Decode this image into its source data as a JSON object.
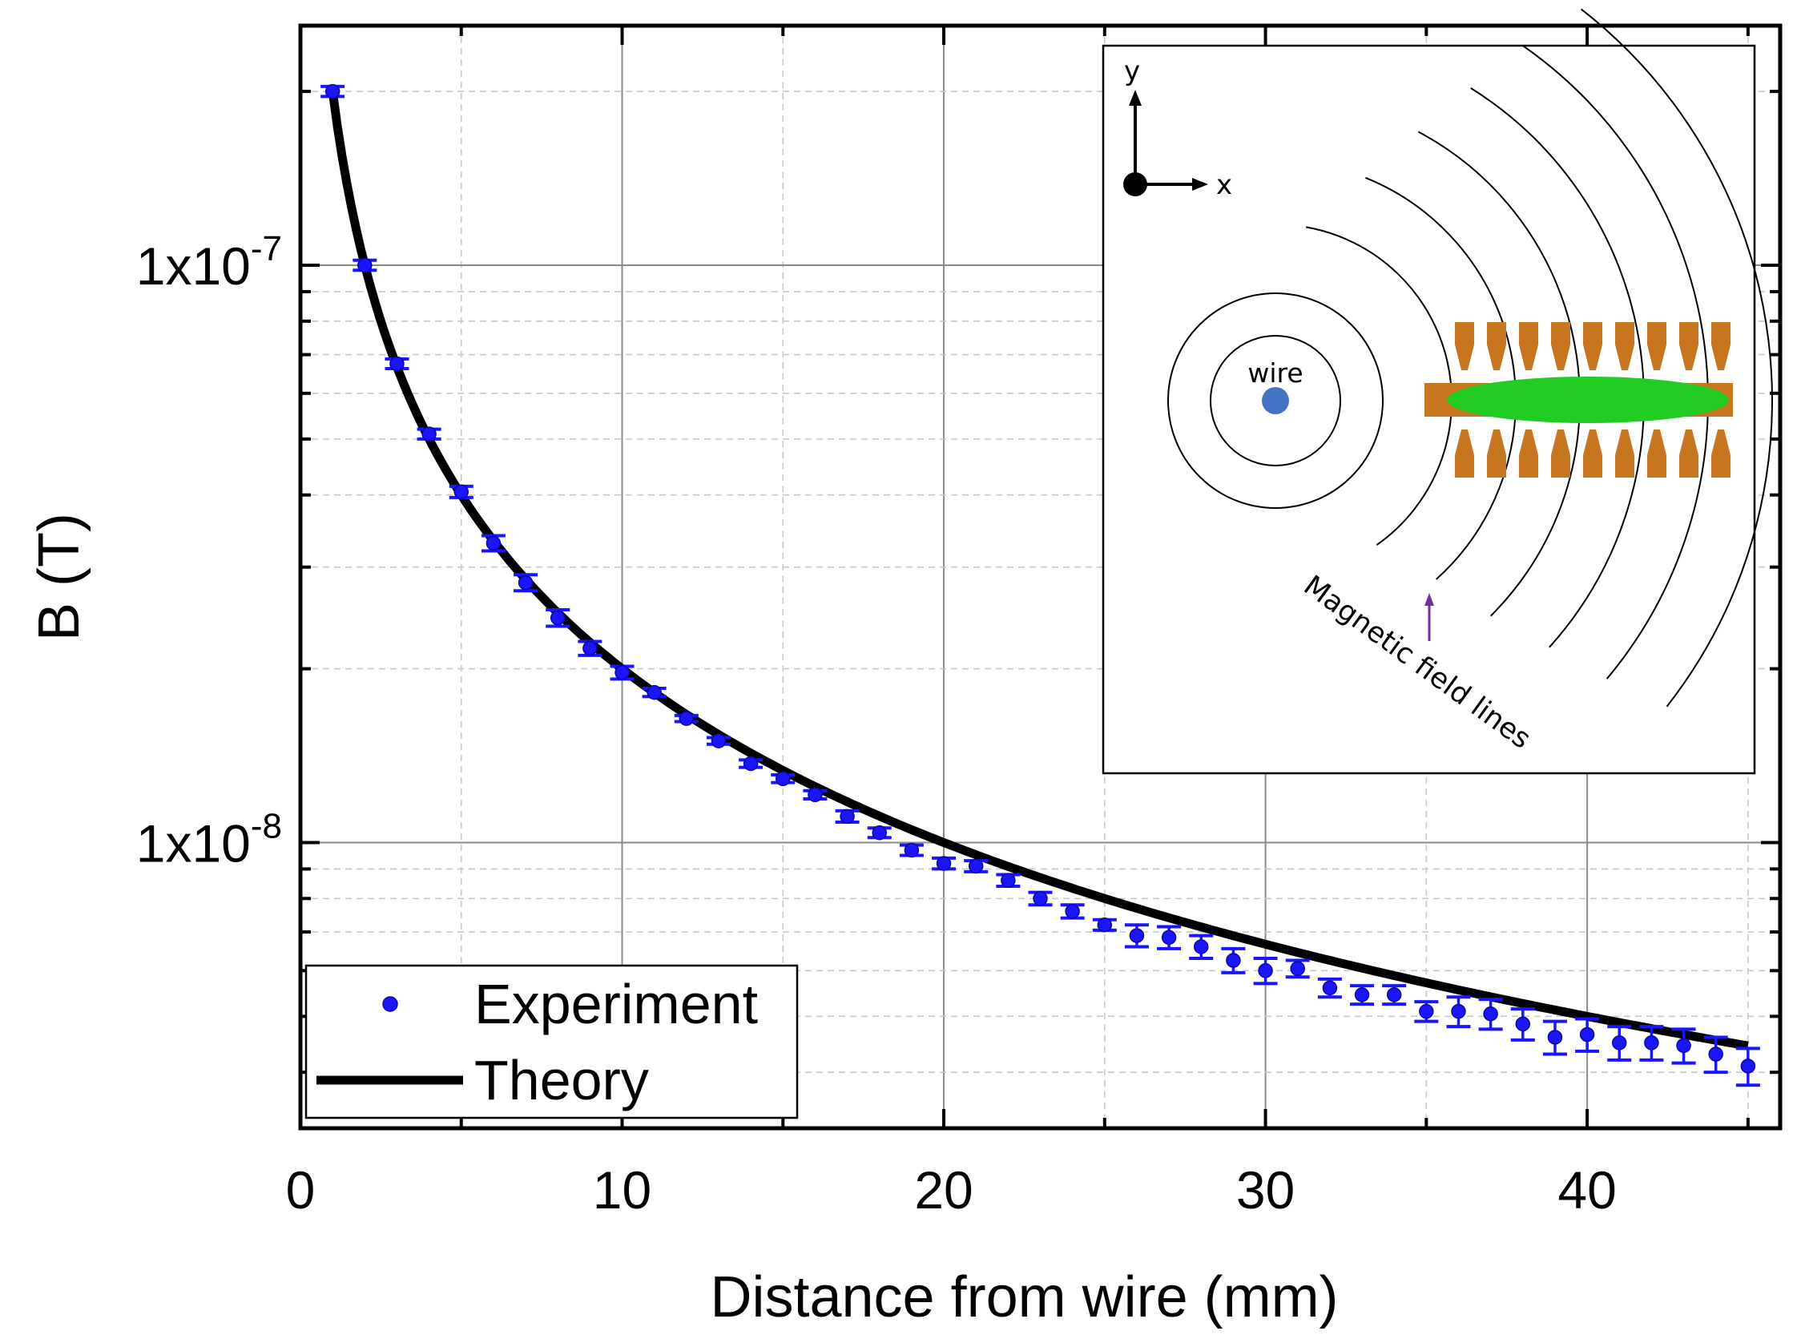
{
  "chart_data": {
    "type": "scatter",
    "xlabel": "Distance from wire (mm)",
    "ylabel": "B (T)",
    "xlim": [
      0,
      46
    ],
    "ylim": [
      3.2e-09,
      2.6e-07
    ],
    "yscale": "log",
    "grid": true,
    "x_ticks": [
      0,
      10,
      20,
      30,
      40
    ],
    "x_tick_labels": [
      "0",
      "10",
      "20",
      "30",
      "40"
    ],
    "y_ticks": [
      1e-08,
      1e-07
    ],
    "y_tick_labels": [
      {
        "base": "1x10",
        "exp": "-8"
      },
      {
        "base": "1x10",
        "exp": "-7"
      }
    ],
    "legend": {
      "position": "bottom-left",
      "entries": [
        {
          "label": "Experiment",
          "marker": "circle",
          "color": "#1a14ff"
        },
        {
          "label": "Theory",
          "marker": "line",
          "color": "#000000"
        }
      ]
    },
    "series": [
      {
        "name": "Experiment",
        "color": "#1a14ff",
        "x": [
          1,
          2,
          3,
          4,
          5,
          6,
          7,
          8,
          9,
          10,
          11,
          12,
          13,
          14,
          15,
          16,
          17,
          18,
          19,
          20,
          21,
          22,
          23,
          24,
          25,
          26,
          27,
          28,
          29,
          30,
          31,
          32,
          33,
          34,
          35,
          36,
          37,
          38,
          39,
          40,
          41,
          42,
          43,
          44,
          45
        ],
        "y": [
          2e-07,
          1e-07,
          6.75e-08,
          5.1e-08,
          4.05e-08,
          3.3e-08,
          2.82e-08,
          2.45e-08,
          2.17e-08,
          1.97e-08,
          1.82e-08,
          1.64e-08,
          1.5e-08,
          1.37e-08,
          1.29e-08,
          1.21e-08,
          1.11e-08,
          1.04e-08,
          9.7e-09,
          9.2e-09,
          9.1e-09,
          8.6e-09,
          8e-09,
          7.6e-09,
          7.2e-09,
          6.9e-09,
          6.85e-09,
          6.6e-09,
          6.25e-09,
          6e-09,
          6.05e-09,
          5.6e-09,
          5.45e-09,
          5.45e-09,
          5.1e-09,
          5.1e-09,
          5.05e-09,
          4.85e-09,
          4.6e-09,
          4.65e-09,
          4.5e-09,
          4.5e-09,
          4.45e-09,
          4.3e-09,
          4.1e-09
        ],
        "err": [
          4e-09,
          2e-09,
          1.3e-09,
          1e-09,
          9e-10,
          1e-09,
          9e-10,
          8e-10,
          6e-10,
          5e-10,
          3e-10,
          2e-10,
          2e-10,
          2e-10,
          2e-10,
          2e-10,
          2.5e-10,
          2e-10,
          2e-10,
          2e-10,
          2e-10,
          2e-10,
          2e-10,
          2e-10,
          1.5e-10,
          3e-10,
          3e-10,
          3e-10,
          3e-10,
          3e-10,
          2e-10,
          2e-10,
          2e-10,
          2e-10,
          2e-10,
          3e-10,
          3e-10,
          3e-10,
          3e-10,
          3e-10,
          3e-10,
          3e-10,
          3e-10,
          3e-10,
          3e-10
        ]
      },
      {
        "name": "Theory",
        "color": "#000000",
        "function": "B = 2e-7 / x",
        "x_range": [
          1,
          45
        ]
      }
    ],
    "inset": {
      "axis_x_label": "x",
      "axis_y_label": "y",
      "wire_label": "wire",
      "field_lines_label": "Magnetic field lines",
      "wire_color": "#4472c4",
      "electrode_color": "#c87520",
      "sample_color": "#22cc22",
      "arrow_color": "#7030a0"
    }
  }
}
